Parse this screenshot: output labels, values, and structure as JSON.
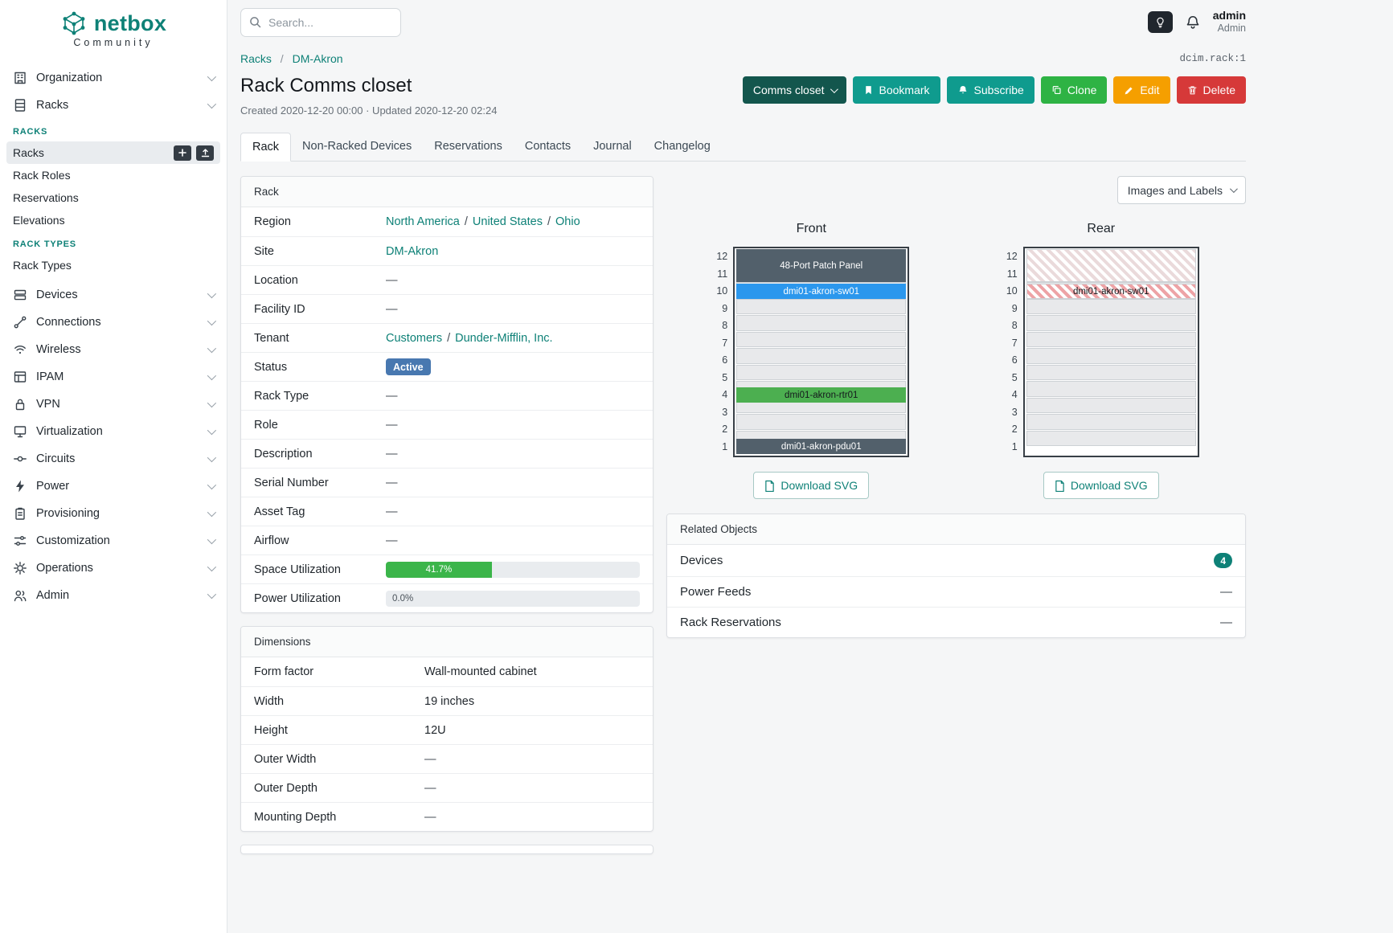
{
  "colors": {
    "accent_teal": "#0e8177",
    "btn_view": "#13564d",
    "btn_action": "#0f9b8e",
    "btn_clone": "#2eb344",
    "btn_edit": "#f59f00",
    "btn_delete": "#d63939",
    "status_blue": "#4878b0",
    "bar_green": "#3bb54a",
    "dev_slate": "#52606b",
    "dev_blue": "#2b97ed",
    "dev_green": "#4caf50",
    "hatch_red": "#eda3a6"
  },
  "brand": {
    "name": "netbox",
    "subtitle": "Community"
  },
  "topbar": {
    "search_placeholder": "Search...",
    "user_name": "admin",
    "user_role": "Admin"
  },
  "sidebar": {
    "items": [
      {
        "label": "Organization"
      },
      {
        "label": "Racks"
      },
      {
        "label": "Devices"
      },
      {
        "label": "Connections"
      },
      {
        "label": "Wireless"
      },
      {
        "label": "IPAM"
      },
      {
        "label": "VPN"
      },
      {
        "label": "Virtualization"
      },
      {
        "label": "Circuits"
      },
      {
        "label": "Power"
      },
      {
        "label": "Provisioning"
      },
      {
        "label": "Customization"
      },
      {
        "label": "Operations"
      },
      {
        "label": "Admin"
      }
    ],
    "racks_group": {
      "section1": "RACKS",
      "items1": [
        "Racks",
        "Rack Roles",
        "Reservations",
        "Elevations"
      ],
      "section2": "RACK TYPES",
      "items2": [
        "Rack Types"
      ]
    }
  },
  "header": {
    "breadcrumb": [
      "Racks",
      "DM-Akron"
    ],
    "separator": "/",
    "object_ref": "dcim.rack:1",
    "title": "Rack Comms closet",
    "meta": "Created 2020-12-20 00:00 · Updated 2020-12-20 02:24"
  },
  "actions": {
    "view_select": "Comms closet",
    "bookmark": "Bookmark",
    "subscribe": "Subscribe",
    "clone": "Clone",
    "edit": "Edit",
    "delete": "Delete"
  },
  "tabs": [
    {
      "label": "Rack",
      "active": true
    },
    {
      "label": "Non-Racked Devices"
    },
    {
      "label": "Reservations"
    },
    {
      "label": "Contacts"
    },
    {
      "label": "Journal"
    },
    {
      "label": "Changelog"
    }
  ],
  "rack_info": {
    "title": "Rack",
    "rows": {
      "region_label": "Region",
      "region_links": [
        "North America",
        "United States",
        "Ohio"
      ],
      "site_label": "Site",
      "site_value": "DM-Akron",
      "location_label": "Location",
      "location_value": "—",
      "facility_label": "Facility ID",
      "facility_value": "—",
      "tenant_label": "Tenant",
      "tenant_links": [
        "Customers",
        "Dunder-Mifflin, Inc."
      ],
      "status_label": "Status",
      "status_value": "Active",
      "rack_type_label": "Rack Type",
      "rack_type_value": "—",
      "role_label": "Role",
      "role_value": "—",
      "description_label": "Description",
      "description_value": "—",
      "serial_label": "Serial Number",
      "serial_value": "—",
      "asset_label": "Asset Tag",
      "asset_value": "—",
      "airflow_label": "Airflow",
      "airflow_value": "—",
      "space_label": "Space Utilization",
      "space_pct": 41.7,
      "space_text": "41.7%",
      "power_label": "Power Utilization",
      "power_pct": 0,
      "power_text": "0.0%"
    }
  },
  "dimensions": {
    "title": "Dimensions",
    "rows": [
      {
        "label": "Form factor",
        "value": "Wall-mounted cabinet"
      },
      {
        "label": "Width",
        "value": "19 inches"
      },
      {
        "label": "Height",
        "value": "12U"
      },
      {
        "label": "Outer Width",
        "value": "—"
      },
      {
        "label": "Outer Depth",
        "value": "—"
      },
      {
        "label": "Mounting Depth",
        "value": "—"
      }
    ]
  },
  "elevation": {
    "toolbar_button": "Images and Labels",
    "unit_labels": [
      "12",
      "11",
      "10",
      "9",
      "8",
      "7",
      "6",
      "5",
      "4",
      "3",
      "2",
      "1"
    ],
    "front": {
      "title": "Front",
      "download": "Download SVG",
      "devices": [
        {
          "name": "48-Port Patch Panel",
          "u_start": 11,
          "u_height": 2
        },
        {
          "name": "dmi01-akron-sw01",
          "u_start": 10,
          "u_height": 1
        },
        {
          "name": "dmi01-akron-rtr01",
          "u_start": 4,
          "u_height": 1
        },
        {
          "name": "dmi01-akron-pdu01",
          "u_start": 1,
          "u_height": 1
        }
      ]
    },
    "rear": {
      "title": "Rear",
      "download": "Download SVG",
      "devices": [
        {
          "name": "",
          "u_start": 11,
          "u_height": 2,
          "hatched": true
        },
        {
          "name": "dmi01-akron-sw01",
          "u_start": 10,
          "u_height": 1,
          "hatched": true
        }
      ]
    }
  },
  "related": {
    "title": "Related Objects",
    "rows": [
      {
        "label": "Devices",
        "badge": "4"
      },
      {
        "label": "Power Feeds",
        "value": "—"
      },
      {
        "label": "Rack Reservations",
        "value": "—"
      }
    ]
  }
}
